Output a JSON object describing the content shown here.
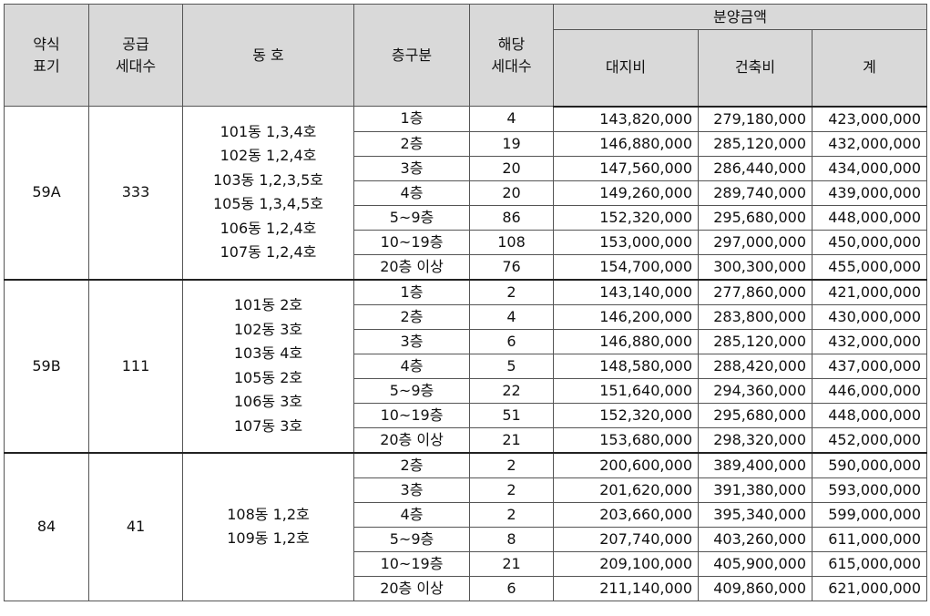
{
  "header": {
    "yak": "약식\n표기",
    "gong": "공급\n세대수",
    "dongho": "동 호",
    "floor": "층구분",
    "units": "해당\n세대수",
    "price_group": "분양금액",
    "land": "대지비",
    "build": "건축비",
    "total": "계"
  },
  "groups": [
    {
      "type": "59A",
      "supply": "333",
      "dongs": [
        "101동 1,3,4호",
        "102동 1,2,4호",
        "103동 1,2,3,5호",
        "105동 1,3,4,5호",
        "106동 1,2,4호",
        "107동 1,2,4호"
      ],
      "rows": [
        {
          "floor": "1층",
          "units": "4",
          "land": "143,820,000",
          "build": "279,180,000",
          "total": "423,000,000"
        },
        {
          "floor": "2층",
          "units": "19",
          "land": "146,880,000",
          "build": "285,120,000",
          "total": "432,000,000"
        },
        {
          "floor": "3층",
          "units": "20",
          "land": "147,560,000",
          "build": "286,440,000",
          "total": "434,000,000"
        },
        {
          "floor": "4층",
          "units": "20",
          "land": "149,260,000",
          "build": "289,740,000",
          "total": "439,000,000"
        },
        {
          "floor": "5~9층",
          "units": "86",
          "land": "152,320,000",
          "build": "295,680,000",
          "total": "448,000,000"
        },
        {
          "floor": "10~19층",
          "units": "108",
          "land": "153,000,000",
          "build": "297,000,000",
          "total": "450,000,000"
        },
        {
          "floor": "20층 이상",
          "units": "76",
          "land": "154,700,000",
          "build": "300,300,000",
          "total": "455,000,000"
        }
      ]
    },
    {
      "type": "59B",
      "supply": "111",
      "dongs": [
        "101동 2호",
        "102동 3호",
        "103동 4호",
        "105동 2호",
        "106동 3호",
        "107동 3호"
      ],
      "rows": [
        {
          "floor": "1층",
          "units": "2",
          "land": "143,140,000",
          "build": "277,860,000",
          "total": "421,000,000"
        },
        {
          "floor": "2층",
          "units": "4",
          "land": "146,200,000",
          "build": "283,800,000",
          "total": "430,000,000"
        },
        {
          "floor": "3층",
          "units": "6",
          "land": "146,880,000",
          "build": "285,120,000",
          "total": "432,000,000"
        },
        {
          "floor": "4층",
          "units": "5",
          "land": "148,580,000",
          "build": "288,420,000",
          "total": "437,000,000"
        },
        {
          "floor": "5~9층",
          "units": "22",
          "land": "151,640,000",
          "build": "294,360,000",
          "total": "446,000,000"
        },
        {
          "floor": "10~19층",
          "units": "51",
          "land": "152,320,000",
          "build": "295,680,000",
          "total": "448,000,000"
        },
        {
          "floor": "20층 이상",
          "units": "21",
          "land": "153,680,000",
          "build": "298,320,000",
          "total": "452,000,000"
        }
      ]
    },
    {
      "type": "84",
      "supply": "41",
      "dongs": [
        "108동 1,2호",
        "109동 1,2호"
      ],
      "rows": [
        {
          "floor": "2층",
          "units": "2",
          "land": "200,600,000",
          "build": "389,400,000",
          "total": "590,000,000"
        },
        {
          "floor": "3층",
          "units": "2",
          "land": "201,620,000",
          "build": "391,380,000",
          "total": "593,000,000"
        },
        {
          "floor": "4층",
          "units": "2",
          "land": "203,660,000",
          "build": "395,340,000",
          "total": "599,000,000"
        },
        {
          "floor": "5~9층",
          "units": "8",
          "land": "207,740,000",
          "build": "403,260,000",
          "total": "611,000,000"
        },
        {
          "floor": "10~19층",
          "units": "21",
          "land": "209,100,000",
          "build": "405,900,000",
          "total": "615,000,000"
        },
        {
          "floor": "20층 이상",
          "units": "6",
          "land": "211,140,000",
          "build": "409,860,000",
          "total": "621,000,000"
        }
      ]
    }
  ]
}
